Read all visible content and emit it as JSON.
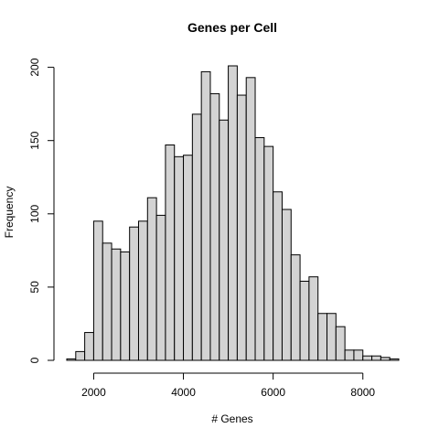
{
  "chart_data": {
    "type": "bar",
    "title": "Genes per Cell",
    "xlabel": "# Genes",
    "ylabel": "Frequency",
    "bin_width": 200,
    "bin_starts": [
      1400,
      1600,
      1800,
      2000,
      2200,
      2400,
      2600,
      2800,
      3000,
      3200,
      3400,
      3600,
      3800,
      4000,
      4200,
      4400,
      4600,
      4800,
      5000,
      5200,
      5400,
      5600,
      5800,
      6000,
      6200,
      6400,
      6600,
      6800,
      7000,
      7200,
      7400,
      7600,
      7800,
      8000,
      8200,
      8400,
      8600
    ],
    "values": [
      1,
      6,
      19,
      95,
      80,
      76,
      74,
      91,
      95,
      111,
      99,
      147,
      139,
      140,
      168,
      197,
      182,
      164,
      201,
      181,
      193,
      152,
      146,
      115,
      103,
      72,
      54,
      57,
      32,
      32,
      23,
      7,
      7,
      3,
      3,
      2,
      1
    ],
    "xlim": [
      1400,
      8800
    ],
    "ylim": [
      0,
      201
    ],
    "x_ticks": [
      2000,
      4000,
      6000,
      8000
    ],
    "x_tick_labels": [
      "2000",
      "4000",
      "6000",
      "8000"
    ],
    "y_ticks": [
      0,
      50,
      100,
      150,
      200
    ],
    "y_tick_labels": [
      "0",
      "50",
      "100",
      "150",
      "200"
    ],
    "bar_fill": "#d3d3d3",
    "bar_stroke": "#000000",
    "grid": false,
    "legend": "none"
  }
}
